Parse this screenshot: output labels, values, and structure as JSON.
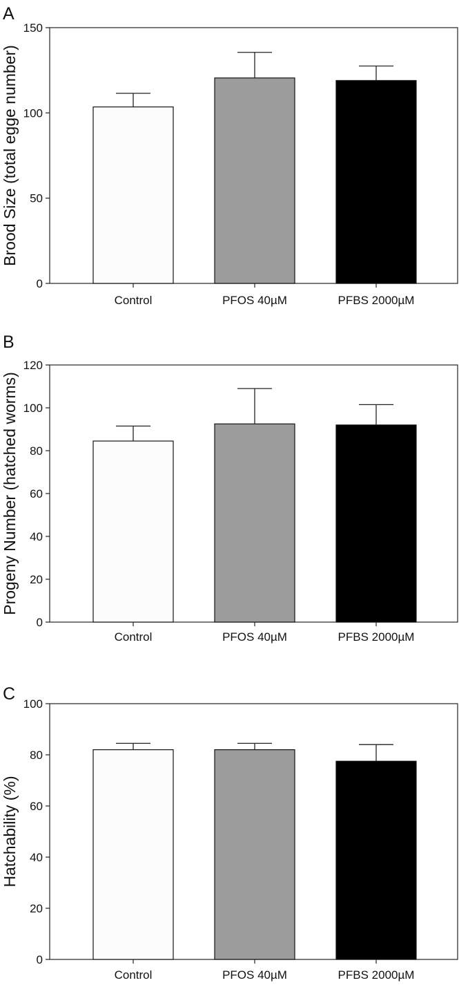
{
  "figure": {
    "panels": [
      "A",
      "B",
      "C"
    ]
  },
  "chart_data": [
    {
      "type": "bar",
      "panel": "A",
      "ylabel": "Brood Size (total egge number)",
      "xlabel": "",
      "categories": [
        "Control",
        "PFOS 40µM",
        "PFBS 2000µM"
      ],
      "values": [
        103.5,
        120.5,
        119
      ],
      "error": [
        8,
        15,
        8.5
      ],
      "bar_colors": [
        "#fcfcfc",
        "#9c9c9c",
        "#000000"
      ],
      "ylim": [
        0,
        150
      ],
      "yticks": [
        0,
        50,
        100,
        150
      ],
      "ytick_labels": [
        "0",
        "50",
        "100",
        "150"
      ]
    },
    {
      "type": "bar",
      "panel": "B",
      "ylabel": "Progeny Number (hatched worms)",
      "xlabel": "",
      "categories": [
        "Control",
        "PFOS 40µM",
        "PFBS 2000µM"
      ],
      "values": [
        84.5,
        92.5,
        92
      ],
      "error": [
        7,
        16.5,
        9.5
      ],
      "bar_colors": [
        "#fcfcfc",
        "#9c9c9c",
        "#000000"
      ],
      "ylim": [
        0,
        120
      ],
      "yticks": [
        0,
        20,
        40,
        60,
        80,
        100,
        120
      ],
      "ytick_labels": [
        "0",
        "20",
        "40",
        "60",
        "80",
        "100",
        "120"
      ]
    },
    {
      "type": "bar",
      "panel": "C",
      "ylabel": "Hatchability (%)",
      "xlabel": "",
      "categories": [
        "Control",
        "PFOS 40µM",
        "PFBS 2000µM"
      ],
      "values": [
        82,
        82,
        77.5
      ],
      "error": [
        2.5,
        2.5,
        6.5
      ],
      "bar_colors": [
        "#fcfcfc",
        "#9c9c9c",
        "#000000"
      ],
      "ylim": [
        0,
        100
      ],
      "yticks": [
        0,
        20,
        40,
        60,
        80,
        100
      ],
      "ytick_labels": [
        "0",
        "20",
        "40",
        "60",
        "80",
        "100"
      ]
    }
  ]
}
